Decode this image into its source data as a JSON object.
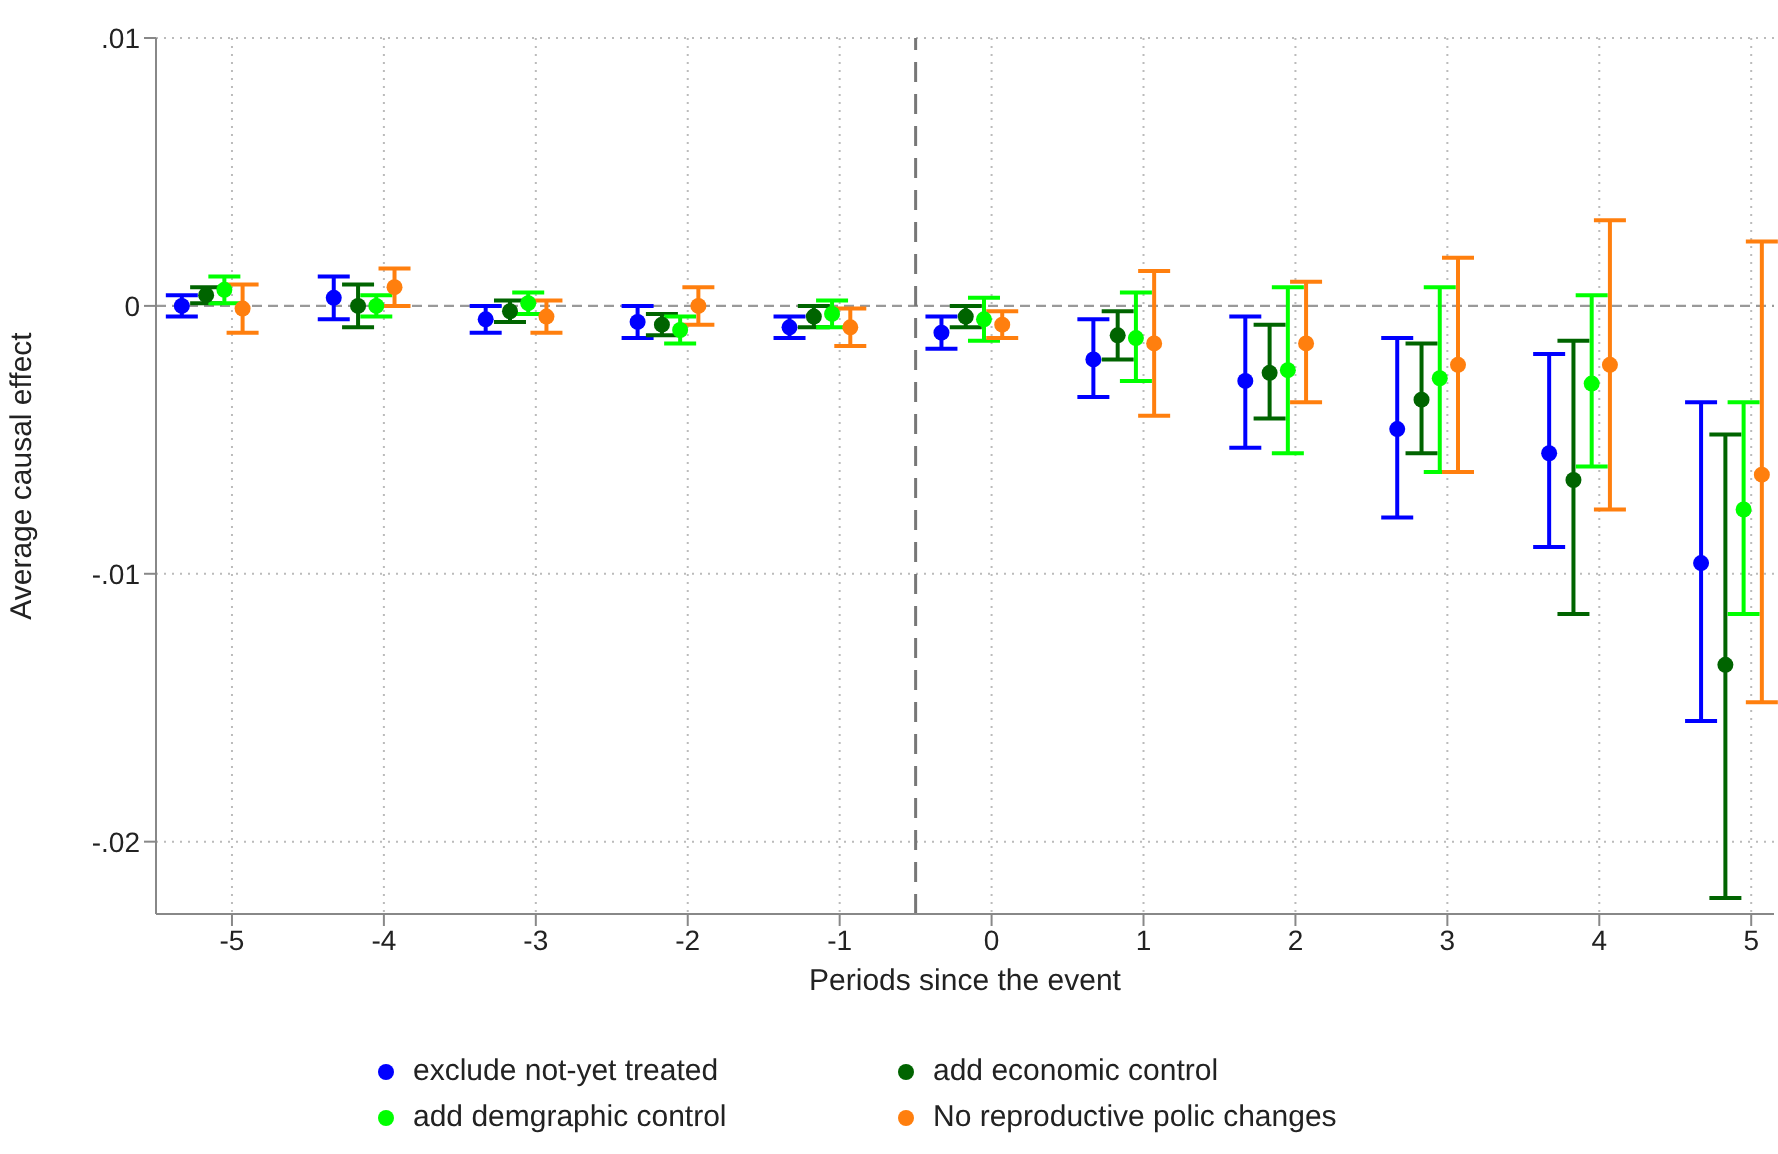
{
  "chart_data": {
    "type": "scatter",
    "xlabel": "Periods since the event",
    "ylabel": "Average causal effect",
    "xlim": [
      -5.5,
      5.15
    ],
    "xticks": [
      -5,
      -4,
      -3,
      -2,
      -1,
      0,
      1,
      2,
      3,
      4,
      5
    ],
    "ylim": [
      -0.0227,
      0.01
    ],
    "yticks": [
      {
        "value": 0.01,
        "label": ".01"
      },
      {
        "value": 0,
        "label": "0"
      },
      {
        "value": -0.01,
        "label": "-.01"
      },
      {
        "value": -0.02,
        "label": "-.02"
      }
    ],
    "grid": true,
    "legend": "bottom",
    "marker": "circle",
    "ref_lines": [
      {
        "axis": "y",
        "value": 0,
        "line_style": "dashed",
        "color": "#999999"
      },
      {
        "axis": "x",
        "value": -0.5,
        "line_style": "dashed",
        "color": "#777777"
      }
    ],
    "series": [
      {
        "name": "exclude not-yet treated",
        "color": "#0000ff",
        "x": [
          -5.33,
          -4.33,
          -3.33,
          -2.33,
          -1.33,
          -0.33,
          0.67,
          1.67,
          2.67,
          3.67,
          4.67
        ],
        "values": [
          0,
          0.0003,
          -0.0005,
          -0.0006,
          -0.0008,
          -0.001,
          -0.002,
          -0.0028,
          -0.0046,
          -0.0055,
          -0.0096
        ],
        "errors": [
          [
            -0.0004,
            0.0004
          ],
          [
            -0.0005,
            0.0011
          ],
          [
            -0.001,
            0
          ],
          [
            -0.0012,
            0
          ],
          [
            -0.0012,
            -0.0004
          ],
          [
            -0.0016,
            -0.0004
          ],
          [
            -0.0034,
            -0.0005
          ],
          [
            -0.0053,
            -0.0004
          ],
          [
            -0.0079,
            -0.0012
          ],
          [
            -0.009,
            -0.0018
          ],
          [
            -0.0155,
            -0.0036
          ]
        ]
      },
      {
        "name": "add economic control",
        "color": "#006400",
        "x": [
          -5.17,
          -4.17,
          -3.17,
          -2.17,
          -1.17,
          -0.17,
          0.83,
          1.83,
          2.83,
          3.83,
          4.83
        ],
        "values": [
          0.0004,
          0,
          -0.0002,
          -0.0007,
          -0.0004,
          -0.0004,
          -0.0011,
          -0.0025,
          -0.0035,
          -0.0065,
          -0.0134
        ],
        "errors": [
          [
            0.0001,
            0.0007
          ],
          [
            -0.0008,
            0.0008
          ],
          [
            -0.0006,
            0.0002
          ],
          [
            -0.0011,
            -0.0003
          ],
          [
            -0.0008,
            0
          ],
          [
            -0.0008,
            0
          ],
          [
            -0.002,
            -0.0002
          ],
          [
            -0.0042,
            -0.0007
          ],
          [
            -0.0055,
            -0.0014
          ],
          [
            -0.0115,
            -0.0013
          ],
          [
            -0.0221,
            -0.0048
          ]
        ]
      },
      {
        "name": "add demgraphic control",
        "color": "#00ff00",
        "x": [
          -5.05,
          -4.05,
          -3.05,
          -2.05,
          -1.05,
          -0.05,
          0.95,
          1.95,
          2.95,
          3.95,
          4.95
        ],
        "values": [
          0.0006,
          0,
          0.0001,
          -0.0009,
          -0.0003,
          -0.0005,
          -0.0012,
          -0.0024,
          -0.0027,
          -0.0029,
          -0.0076
        ],
        "errors": [
          [
            0.0001,
            0.0011
          ],
          [
            -0.0004,
            0.0004
          ],
          [
            -0.0003,
            0.0005
          ],
          [
            -0.0014,
            -0.0004
          ],
          [
            -0.0008,
            0.0002
          ],
          [
            -0.0013,
            0.0003
          ],
          [
            -0.0028,
            0.0005
          ],
          [
            -0.0055,
            0.0007
          ],
          [
            -0.0062,
            0.0007
          ],
          [
            -0.006,
            0.0004
          ],
          [
            -0.0115,
            -0.0036
          ]
        ]
      },
      {
        "name": "No reproductive polic changes",
        "color": "#ff7f0e",
        "x": [
          -4.93,
          -3.93,
          -2.93,
          -1.93,
          -0.93,
          0.07,
          1.07,
          2.07,
          3.07,
          4.07,
          5.07
        ],
        "values": [
          -0.0001,
          0.0007,
          -0.0004,
          0,
          -0.0008,
          -0.0007,
          -0.0014,
          -0.0014,
          -0.0022,
          -0.0022,
          -0.0063
        ],
        "errors": [
          [
            -0.001,
            0.0008
          ],
          [
            0,
            0.0014
          ],
          [
            -0.001,
            0.0002
          ],
          [
            -0.0007,
            0.0007
          ],
          [
            -0.0015,
            -0.0001
          ],
          [
            -0.0012,
            -0.0002
          ],
          [
            -0.0041,
            0.0013
          ],
          [
            -0.0036,
            0.0009
          ],
          [
            -0.0062,
            0.0018
          ],
          [
            -0.0076,
            0.0032
          ],
          [
            -0.0148,
            0.0024
          ]
        ]
      }
    ]
  }
}
